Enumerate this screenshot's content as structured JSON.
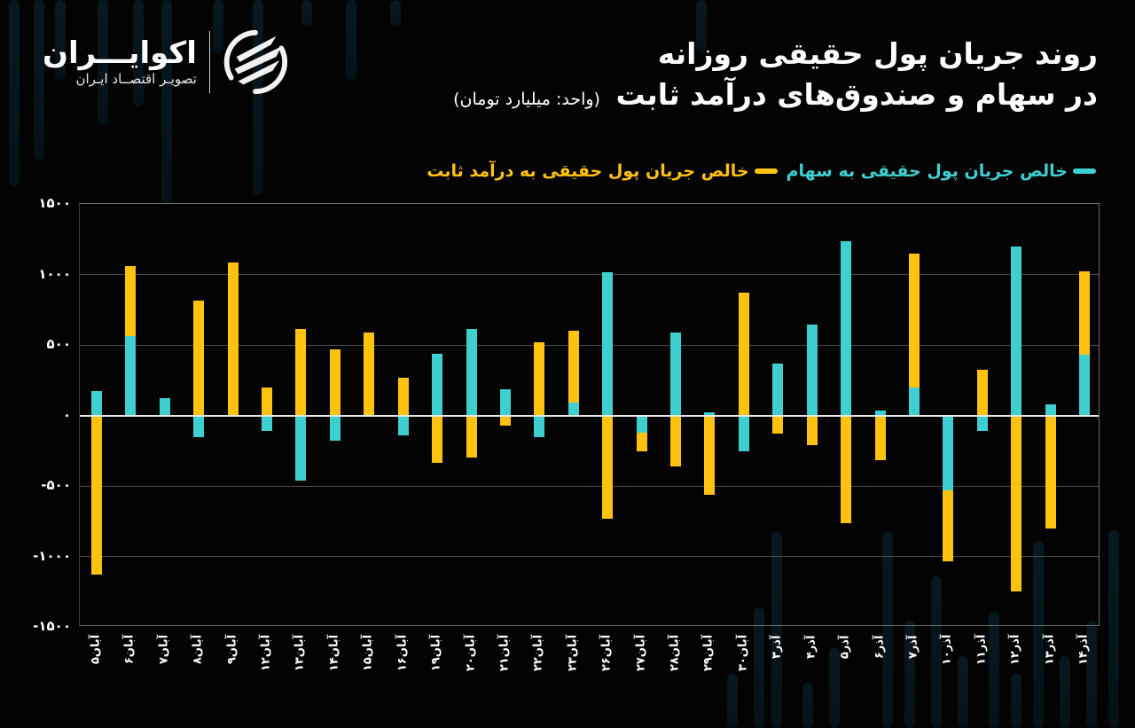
{
  "brand": {
    "name": "اکوایـــران",
    "tagline": "تصویـر اقتصــاد ایـران"
  },
  "title": {
    "line1": "روند جریان پول حقیقی روزانه",
    "line2": "در سهام و صندوق‌های درآمد ثابت",
    "unit": "(واحد: میلیارد تومان)"
  },
  "colors": {
    "background": "#030303",
    "stocks": "#3ecfd1",
    "fixed_income": "#ffc20e",
    "grid": "#4e4e4e",
    "zero_line": "#e9e9e9"
  },
  "legend": {
    "stocks": "خالص جریان پول حقیقی به سهام",
    "fixed_income": "خالص جریان پول حقیقی به درآمد ثابت"
  },
  "y_axis": {
    "ticks": [
      {
        "value": 1500,
        "label": "۱۵۰۰"
      },
      {
        "value": 1000,
        "label": "۱۰۰۰"
      },
      {
        "value": 500,
        "label": "۵۰۰"
      },
      {
        "value": 0,
        "label": "۰"
      },
      {
        "value": -500,
        "label": "-۵۰۰"
      },
      {
        "value": -1000,
        "label": "-۱۰۰۰"
      },
      {
        "value": -1500,
        "label": "-۱۵۰۰"
      }
    ]
  },
  "chart_data": {
    "type": "bar",
    "stacked": true,
    "title": "روند جریان پول حقیقی روزانه در سهام و صندوق‌های درآمد ثابت",
    "subtitle": "(واحد: میلیارد تومان)",
    "xlabel": "",
    "ylabel": "میلیارد تومان",
    "ylim": [
      -1500,
      1500
    ],
    "yticks": [
      -1500,
      -1000,
      -500,
      0,
      500,
      1000,
      1500
    ],
    "grid": true,
    "legend_position": "top-right",
    "categories": [
      "آبان۵",
      "آبان۶",
      "آبان۷",
      "آبان۸",
      "آبان۹",
      "آبان۱۲",
      "آبان۱۳",
      "آبان۱۴",
      "آبان۱۵",
      "آبان۱۶",
      "آبان۱۹",
      "آبان۲۰",
      "آبان۲۱",
      "آبان۲۲",
      "آبان۲۳",
      "آبان۲۶",
      "آبان۲۷",
      "آبان۲۸",
      "آبان۲۹",
      "آبان۳۰",
      "آذر۳",
      "آذر۴",
      "آذر۵",
      "آذر۶",
      "آذر۷",
      "آذر۱۰",
      "آذر۱۱",
      "آذر۱۲",
      "آذر۱۳",
      "آذر۱۴"
    ],
    "series": [
      {
        "name": "خالص جریان پول حقیقی به سهام",
        "color": "#3ecfd1",
        "values": [
          175,
          560,
          120,
          -155,
          0,
          -110,
          -465,
          -180,
          0,
          -140,
          435,
          615,
          185,
          -155,
          90,
          1015,
          -120,
          585,
          25,
          -255,
          365,
          645,
          1235,
          35,
          200,
          -530,
          -110,
          1200,
          80,
          430
        ]
      },
      {
        "name": "خالص جریان پول حقیقی به درآمد ثابت",
        "color": "#ffc20e",
        "values": [
          -1130,
          500,
          0,
          815,
          1085,
          200,
          615,
          470,
          585,
          270,
          -335,
          -300,
          -75,
          520,
          510,
          -730,
          -135,
          -360,
          -565,
          870,
          -130,
          -210,
          -765,
          -320,
          950,
          -505,
          325,
          -1250,
          -800,
          595
        ]
      }
    ]
  }
}
